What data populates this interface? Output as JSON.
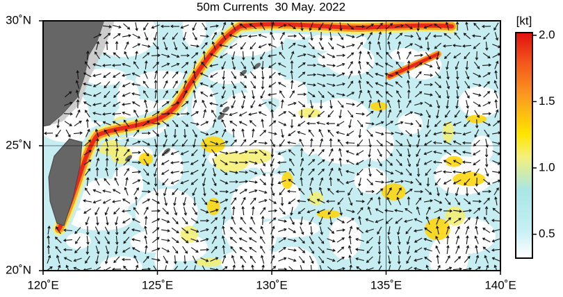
{
  "map": {
    "title": "50m Currents  30 May. 2022",
    "lon_lim": [
      120,
      140
    ],
    "lat_lim": [
      20,
      30
    ],
    "lon_ticks": [
      {
        "value": 120,
        "label": "120˚E"
      },
      {
        "value": 125,
        "label": "125˚E"
      },
      {
        "value": 130,
        "label": "130˚E"
      },
      {
        "value": 135,
        "label": "135˚E"
      },
      {
        "value": 140,
        "label": "140˚E"
      }
    ],
    "lat_ticks": [
      {
        "value": 20,
        "label": "20˚N"
      },
      {
        "value": 25,
        "label": "25˚N"
      },
      {
        "value": 30,
        "label": "30˚N"
      }
    ],
    "colorbar": {
      "unit": "[kt]",
      "lim": [
        0.32,
        2.02
      ],
      "ticks": [
        0.5,
        {
          "value": 1.0,
          "label": "1.0"
        },
        1.5,
        {
          "value": 2.0,
          "label": "2.0"
        }
      ]
    }
  }
}
